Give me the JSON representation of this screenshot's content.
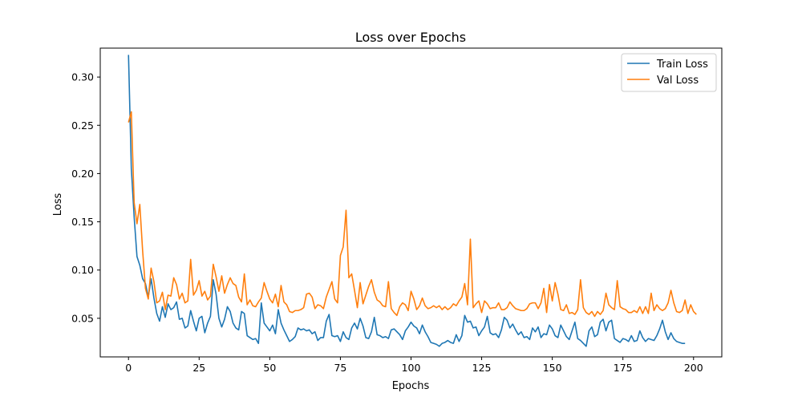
{
  "chart_data": {
    "type": "line",
    "title": "Loss over Epochs",
    "xlabel": "Epochs",
    "ylabel": "Loss",
    "xlim": [
      -10,
      210
    ],
    "ylim": [
      0.01,
      0.33
    ],
    "xticks": [
      0,
      25,
      50,
      75,
      100,
      125,
      150,
      175,
      200
    ],
    "yticks": [
      0.05,
      0.1,
      0.15,
      0.2,
      0.25,
      0.3
    ],
    "ytick_labels": [
      "0.05",
      "0.10",
      "0.15",
      "0.20",
      "0.25",
      "0.30"
    ],
    "grid": false,
    "legend": "top-right",
    "series": [
      {
        "name": "Train Loss",
        "color": "#1f77b4",
        "values": [
          0.323,
          0.205,
          0.155,
          0.114,
          0.105,
          0.091,
          0.086,
          0.072,
          0.091,
          0.071,
          0.055,
          0.047,
          0.062,
          0.051,
          0.065,
          0.059,
          0.061,
          0.067,
          0.049,
          0.05,
          0.04,
          0.042,
          0.058,
          0.047,
          0.037,
          0.05,
          0.052,
          0.035,
          0.045,
          0.052,
          0.09,
          0.075,
          0.05,
          0.041,
          0.049,
          0.062,
          0.057,
          0.045,
          0.04,
          0.038,
          0.057,
          0.055,
          0.032,
          0.03,
          0.028,
          0.029,
          0.024,
          0.066,
          0.045,
          0.041,
          0.037,
          0.043,
          0.034,
          0.059,
          0.045,
          0.038,
          0.032,
          0.026,
          0.028,
          0.031,
          0.04,
          0.038,
          0.039,
          0.037,
          0.038,
          0.034,
          0.036,
          0.027,
          0.03,
          0.03,
          0.047,
          0.054,
          0.032,
          0.031,
          0.032,
          0.026,
          0.036,
          0.03,
          0.028,
          0.04,
          0.045,
          0.039,
          0.05,
          0.042,
          0.03,
          0.029,
          0.036,
          0.051,
          0.033,
          0.032,
          0.03,
          0.031,
          0.029,
          0.038,
          0.039,
          0.036,
          0.033,
          0.028,
          0.037,
          0.041,
          0.046,
          0.042,
          0.04,
          0.034,
          0.043,
          0.036,
          0.031,
          0.025,
          0.024,
          0.023,
          0.021,
          0.024,
          0.025,
          0.027,
          0.025,
          0.024,
          0.033,
          0.026,
          0.032,
          0.053,
          0.046,
          0.047,
          0.04,
          0.041,
          0.032,
          0.037,
          0.041,
          0.052,
          0.035,
          0.033,
          0.034,
          0.03,
          0.038,
          0.051,
          0.048,
          0.04,
          0.044,
          0.038,
          0.033,
          0.036,
          0.03,
          0.031,
          0.028,
          0.04,
          0.036,
          0.041,
          0.03,
          0.034,
          0.033,
          0.043,
          0.039,
          0.032,
          0.03,
          0.043,
          0.037,
          0.031,
          0.028,
          0.037,
          0.046,
          0.029,
          0.027,
          0.024,
          0.021,
          0.037,
          0.041,
          0.031,
          0.033,
          0.046,
          0.049,
          0.037,
          0.046,
          0.048,
          0.029,
          0.027,
          0.025,
          0.029,
          0.028,
          0.026,
          0.032,
          0.026,
          0.027,
          0.037,
          0.03,
          0.026,
          0.029,
          0.028,
          0.027,
          0.032,
          0.039,
          0.048,
          0.036,
          0.028,
          0.035,
          0.029,
          0.026,
          0.025,
          0.024,
          0.024
        ]
      },
      {
        "name": "Val Loss",
        "color": "#ff7f0e",
        "values": [
          0.253,
          0.264,
          0.17,
          0.148,
          0.168,
          0.12,
          0.081,
          0.07,
          0.102,
          0.088,
          0.066,
          0.068,
          0.077,
          0.059,
          0.074,
          0.073,
          0.092,
          0.085,
          0.07,
          0.076,
          0.066,
          0.068,
          0.111,
          0.074,
          0.079,
          0.089,
          0.073,
          0.078,
          0.069,
          0.073,
          0.106,
          0.093,
          0.078,
          0.094,
          0.076,
          0.085,
          0.092,
          0.086,
          0.084,
          0.072,
          0.067,
          0.096,
          0.064,
          0.069,
          0.063,
          0.062,
          0.067,
          0.071,
          0.087,
          0.078,
          0.07,
          0.066,
          0.075,
          0.062,
          0.084,
          0.067,
          0.064,
          0.057,
          0.056,
          0.058,
          0.058,
          0.059,
          0.061,
          0.075,
          0.076,
          0.072,
          0.06,
          0.064,
          0.063,
          0.06,
          0.072,
          0.08,
          0.088,
          0.07,
          0.066,
          0.115,
          0.124,
          0.162,
          0.092,
          0.096,
          0.079,
          0.061,
          0.087,
          0.065,
          0.074,
          0.083,
          0.09,
          0.077,
          0.069,
          0.067,
          0.063,
          0.062,
          0.088,
          0.06,
          0.056,
          0.053,
          0.062,
          0.066,
          0.064,
          0.058,
          0.078,
          0.07,
          0.059,
          0.063,
          0.071,
          0.063,
          0.06,
          0.061,
          0.063,
          0.061,
          0.063,
          0.059,
          0.062,
          0.059,
          0.061,
          0.065,
          0.063,
          0.068,
          0.072,
          0.086,
          0.064,
          0.132,
          0.061,
          0.065,
          0.068,
          0.056,
          0.068,
          0.065,
          0.06,
          0.061,
          0.061,
          0.066,
          0.059,
          0.059,
          0.061,
          0.067,
          0.063,
          0.06,
          0.059,
          0.058,
          0.058,
          0.06,
          0.065,
          0.066,
          0.066,
          0.06,
          0.066,
          0.081,
          0.056,
          0.085,
          0.068,
          0.087,
          0.075,
          0.059,
          0.058,
          0.064,
          0.055,
          0.056,
          0.054,
          0.059,
          0.09,
          0.061,
          0.056,
          0.054,
          0.057,
          0.052,
          0.057,
          0.054,
          0.058,
          0.076,
          0.064,
          0.061,
          0.059,
          0.089,
          0.062,
          0.06,
          0.059,
          0.056,
          0.056,
          0.058,
          0.056,
          0.062,
          0.055,
          0.062,
          0.055,
          0.076,
          0.058,
          0.064,
          0.06,
          0.058,
          0.06,
          0.066,
          0.079,
          0.066,
          0.057,
          0.056,
          0.058,
          0.069,
          0.055,
          0.064,
          0.057,
          0.054
        ]
      }
    ]
  }
}
